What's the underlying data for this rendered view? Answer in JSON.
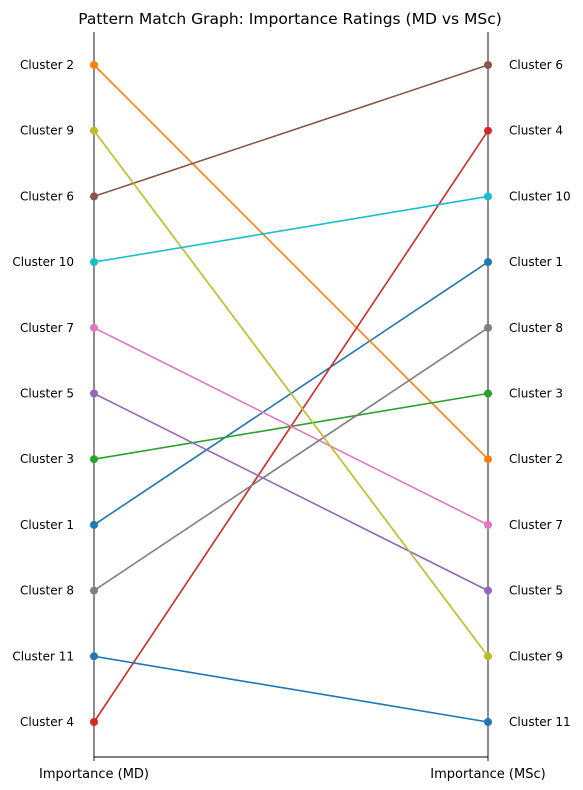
{
  "chart_data": {
    "type": "line",
    "title": "Pattern Match Graph: Importance Ratings (MD vs MSc)",
    "xlabel": "",
    "ylabel": "",
    "x_categories": [
      "Importance (MD)",
      "Importance (MSc)"
    ],
    "left_tick_labels": [
      "Cluster 2",
      "Cluster 9",
      "Cluster 6",
      "Cluster 10",
      "Cluster 7",
      "Cluster 5",
      "Cluster 3",
      "Cluster 1",
      "Cluster 8",
      "Cluster 11",
      "Cluster 4"
    ],
    "right_tick_labels": [
      "Cluster 6",
      "Cluster 4",
      "Cluster 10",
      "Cluster 1",
      "Cluster 8",
      "Cluster 3",
      "Cluster 2",
      "Cluster 7",
      "Cluster 5",
      "Cluster 9",
      "Cluster 11"
    ],
    "rank_range": [
      1,
      11
    ],
    "rank_direction": "1 at top",
    "grid": false,
    "legend": "none",
    "series": [
      {
        "cluster": "Cluster 1",
        "md_rank": 8,
        "msc_rank": 4,
        "color": "#1f77b4"
      },
      {
        "cluster": "Cluster 2",
        "md_rank": 1,
        "msc_rank": 7,
        "color": "#ff7f0e"
      },
      {
        "cluster": "Cluster 3",
        "md_rank": 7,
        "msc_rank": 6,
        "color": "#2ca02c"
      },
      {
        "cluster": "Cluster 4",
        "md_rank": 11,
        "msc_rank": 2,
        "color": "#d62728"
      },
      {
        "cluster": "Cluster 5",
        "md_rank": 6,
        "msc_rank": 9,
        "color": "#9467bd"
      },
      {
        "cluster": "Cluster 6",
        "md_rank": 3,
        "msc_rank": 1,
        "color": "#8c564b"
      },
      {
        "cluster": "Cluster 7",
        "md_rank": 5,
        "msc_rank": 8,
        "color": "#e377c2"
      },
      {
        "cluster": "Cluster 8",
        "md_rank": 9,
        "msc_rank": 5,
        "color": "#7f7f7f"
      },
      {
        "cluster": "Cluster 9",
        "md_rank": 2,
        "msc_rank": 10,
        "color": "#bcbd22"
      },
      {
        "cluster": "Cluster 10",
        "md_rank": 4,
        "msc_rank": 3,
        "color": "#17becf"
      },
      {
        "cluster": "Cluster 11",
        "md_rank": 10,
        "msc_rank": 11,
        "color": "#1f77b4"
      }
    ]
  }
}
